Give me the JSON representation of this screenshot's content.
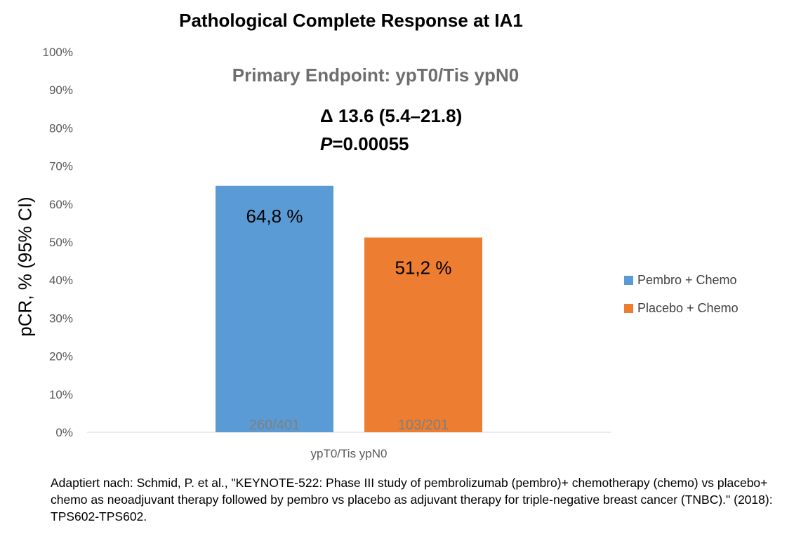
{
  "chart_data": {
    "type": "bar",
    "title": "Pathological Complete Response at IA1",
    "subtitle": "Primary Endpoint: ypT0/Tis ypN0",
    "ylabel": "pCR, % (95% CI)",
    "xlabel": "",
    "categories": [
      "ypT0/Tis ypN0"
    ],
    "ylim": [
      0,
      100
    ],
    "yticks": [
      0,
      10,
      20,
      30,
      40,
      50,
      60,
      70,
      80,
      90,
      100
    ],
    "ytick_labels": [
      "0%",
      "10%",
      "20%",
      "30%",
      "40%",
      "50%",
      "60%",
      "70%",
      "80%",
      "90%",
      "100%"
    ],
    "grid": false,
    "legend_position": "right",
    "series": [
      {
        "name": "Pembro + Chemo",
        "values": [
          64.8
        ],
        "color": "#5b9bd5",
        "value_label": "64,8 %",
        "count_label": "260/401"
      },
      {
        "name": "Placebo + Chemo",
        "values": [
          51.2
        ],
        "color": "#ed7d31",
        "value_label": "51,2 %",
        "count_label": "103/201"
      }
    ],
    "annotations": {
      "delta": "Δ 13.6 (5.4–21.8)",
      "p_prefix": "P",
      "p_value": "=0.00055"
    }
  },
  "caption": "Adaptiert nach: Schmid, P. et al., \"KEYNOTE-522: Phase III study of pembrolizumab (pembro)+ chemotherapy (chemo) vs placebo+ chemo as neoadjuvant therapy followed by pembro vs placebo as adjuvant therapy for triple-negative breast cancer (TNBC).\" (2018): TPS602-TPS602."
}
